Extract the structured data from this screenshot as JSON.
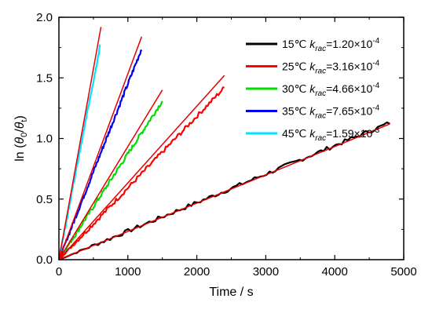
{
  "chart_data": {
    "type": "line",
    "xlabel": "Time / s",
    "ylabel": "ln (θ0/θt)",
    "ylabel_parts": {
      "prefix": "ln (",
      "theta1": "θ",
      "sub1": "0",
      "slash": "/",
      "theta2": "θ",
      "sub2": "t",
      "suffix": ")"
    },
    "xlim": [
      0,
      5000
    ],
    "ylim": [
      0,
      2.0
    ],
    "x_ticks": [
      "0",
      "1000",
      "2000",
      "3000",
      "4000",
      "5000"
    ],
    "y_ticks": [
      "0.0",
      "0.5",
      "1.0",
      "1.5",
      "2.0"
    ],
    "grid": false,
    "legend_position": "top-right",
    "fit_color": "#e60000",
    "series": [
      {
        "name": "15℃ krac=1.20×10-4",
        "legend": {
          "temp": "15℃ ",
          "k": "k",
          "sub": "rac",
          "value": "=1.20×10",
          "exp": "-4"
        },
        "color": "#000000",
        "x_max": 4800,
        "y_end": 1.13,
        "fit": {
          "x_end": 4800,
          "y_end": 1.12
        }
      },
      {
        "name": "25℃ krac=3.16×10-4",
        "legend": {
          "temp": "25℃ ",
          "k": "k",
          "sub": "rac",
          "value": "=3.16×10",
          "exp": "-4"
        },
        "color": "#ff0000",
        "x_max": 2400,
        "y_end": 1.42,
        "fit": {
          "x_end": 2400,
          "y_end": 1.52
        }
      },
      {
        "name": "30℃ krac=4.66×10-4",
        "legend": {
          "temp": "30℃ ",
          "k": "k",
          "sub": "rac",
          "value": "=4.66×10",
          "exp": "-4"
        },
        "color": "#00dd00",
        "x_max": 1500,
        "y_end": 1.31,
        "fit": {
          "x_end": 1500,
          "y_end": 1.4
        }
      },
      {
        "name": "35℃ krac=7.65×10-4",
        "legend": {
          "temp": "35℃ ",
          "k": "k",
          "sub": "rac",
          "value": "=7.65×10",
          "exp": "-4"
        },
        "color": "#0000ee",
        "x_max": 1200,
        "y_end": 1.74,
        "fit": {
          "x_end": 1200,
          "y_end": 1.84
        }
      },
      {
        "name": "45℃ krac=1.59×10-3",
        "legend": {
          "temp": "45℃ ",
          "k": "k",
          "sub": "rac",
          "value": "=1.59×10",
          "exp": "-3"
        },
        "color": "#00e5ff",
        "x_max": 600,
        "y_end": 1.77,
        "fit": {
          "x_end": 610,
          "y_end": 1.92
        }
      }
    ]
  }
}
